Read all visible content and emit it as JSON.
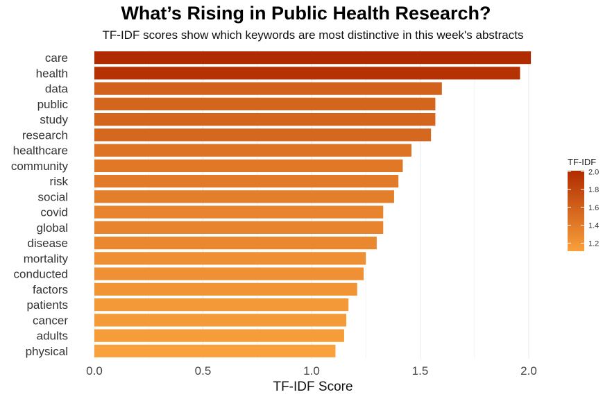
{
  "chart_data": {
    "type": "bar",
    "orientation": "horizontal",
    "title": "What’s Rising in Public Health Research?",
    "subtitle": "TF-IDF scores show which keywords are most distinctive in this week's abstracts",
    "xlabel": "TF-IDF Score",
    "ylabel": "",
    "xlim": [
      0,
      2.1
    ],
    "xticks": [
      "0.0",
      "0.5",
      "1.0",
      "1.5",
      "2.0"
    ],
    "grid": true,
    "categories": [
      "care",
      "health",
      "data",
      "public",
      "study",
      "research",
      "healthcare",
      "community",
      "risk",
      "social",
      "covid",
      "global",
      "disease",
      "mortality",
      "conducted",
      "factors",
      "patients",
      "cancer",
      "adults",
      "physical"
    ],
    "values": [
      2.01,
      1.96,
      1.6,
      1.57,
      1.57,
      1.55,
      1.46,
      1.42,
      1.4,
      1.38,
      1.33,
      1.33,
      1.3,
      1.25,
      1.24,
      1.21,
      1.17,
      1.16,
      1.15,
      1.11
    ],
    "legend": {
      "title": "TF-IDF",
      "placement": "right",
      "ticks": [
        "1.2",
        "1.4",
        "1.6",
        "1.8",
        "2.0"
      ],
      "range": [
        1.11,
        2.01
      ],
      "color_low": "#f9a13c",
      "color_high": "#b02b00"
    }
  }
}
